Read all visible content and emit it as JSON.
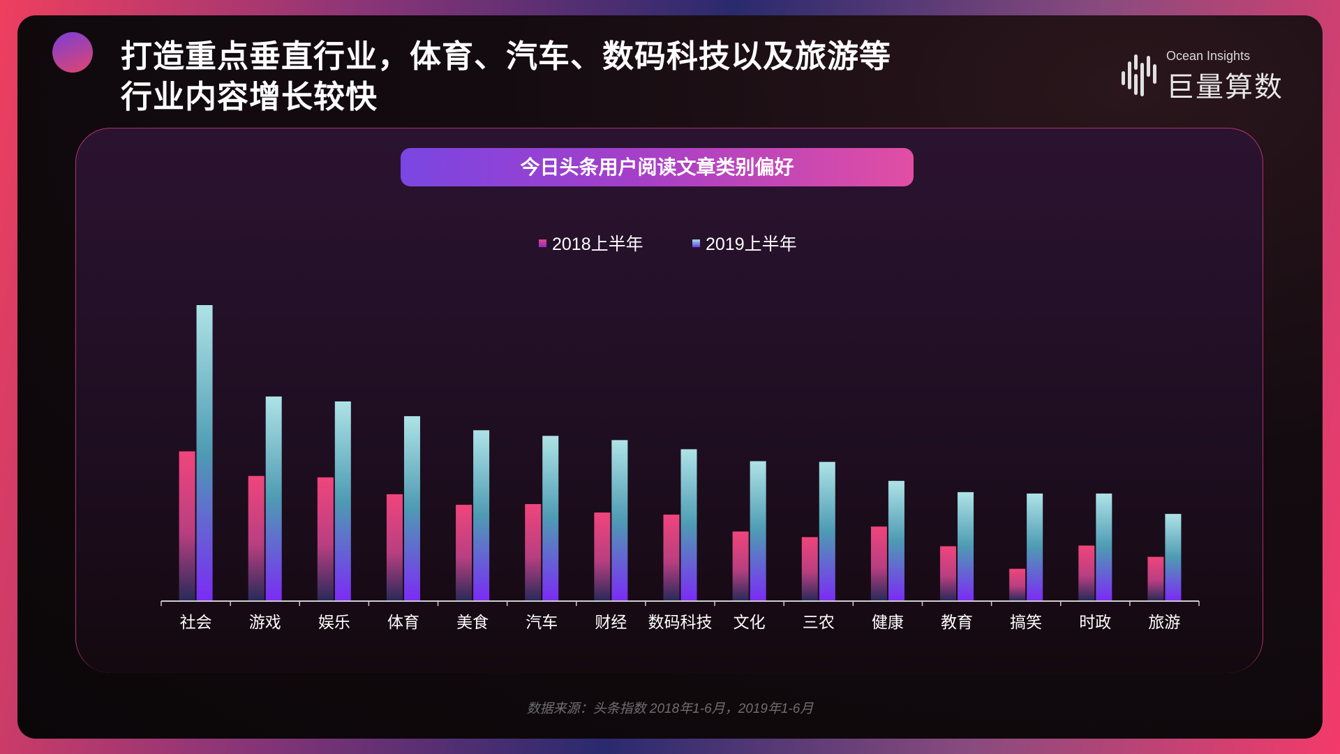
{
  "header": {
    "title_line1": "打造重点垂直行业，体育、汽车、数码科技以及旅游等",
    "title_line2": "行业内容增长较快"
  },
  "logo": {
    "en": "Ocean Insights",
    "cn": "巨量算数"
  },
  "source": "数据来源：头条指数   2018年1-6月，2019年1-6月",
  "colors": {
    "series_2018": "#e8457a",
    "series_2019": "#9fe0e2",
    "bar_base": "#7b2cf4",
    "chart_title_start": "#7a46e2",
    "chart_title_end": "#e14ea4"
  },
  "chart_data": {
    "type": "bar",
    "title": "今日头条用户阅读文章类别偏好",
    "categories": [
      "社会",
      "游戏",
      "娱乐",
      "体育",
      "美食",
      "汽车",
      "财经",
      "数码科技",
      "文化",
      "三农",
      "健康",
      "教育",
      "搞笑",
      "时政",
      "旅游"
    ],
    "series": [
      {
        "name": "2018上半年",
        "values": [
          21.2,
          17.7,
          17.5,
          15.1,
          13.6,
          13.7,
          12.5,
          12.2,
          9.8,
          9.0,
          10.5,
          7.7,
          4.5,
          7.8,
          6.2
        ]
      },
      {
        "name": "2019上半年",
        "values": [
          42.0,
          29.0,
          28.3,
          26.2,
          24.2,
          23.4,
          22.8,
          21.5,
          19.8,
          19.7,
          17.0,
          15.4,
          15.2,
          15.2,
          12.3
        ]
      }
    ],
    "ylim": [
      0,
      42.0
    ],
    "legend_position": "top-center",
    "grid": false,
    "xlabel": "",
    "ylabel": ""
  }
}
